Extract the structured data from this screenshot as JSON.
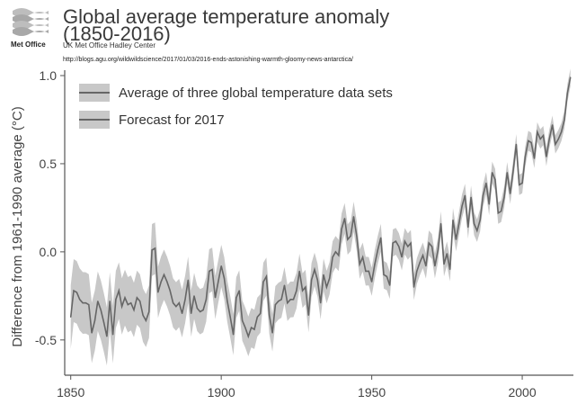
{
  "logo": {
    "text": "Met Office"
  },
  "header": {
    "title_line1": "Global average temperature anomaly",
    "title_line2": "(1850-2016)",
    "credit": "UK Met Office Hadley Center",
    "source_url": "http://blogs.agu.org/wildwildscience/2017/01/03/2016-ends-astonishing-warmth-gloomy-news-antarctica/"
  },
  "colors": {
    "band": "#c8c8c8",
    "line": "#666666",
    "axis": "#555555"
  },
  "chart_data": {
    "type": "line",
    "title": "Global average temperature anomaly (1850-2016)",
    "xlabel": "",
    "ylabel": "Difference from 1961-1990 average (°C)",
    "xlim": [
      1848,
      2017
    ],
    "ylim": [
      -0.7,
      1.0
    ],
    "x_ticks": [
      1850,
      1900,
      1950,
      2000
    ],
    "x_tick_labels": [
      "1850",
      "1900",
      "1950",
      "2000"
    ],
    "y_ticks": [
      1.0,
      0.5,
      0.0,
      -0.5
    ],
    "y_tick_labels": [
      "1.0",
      "0.5",
      "0.0",
      "-0.5"
    ],
    "grid": false,
    "legend_position": "top-left",
    "legend": [
      "Average of three global temperature data sets",
      "Forecast for 2017"
    ],
    "band_halfwidth_by_year": [
      [
        1850,
        0.18
      ],
      [
        1900,
        0.12
      ],
      [
        1950,
        0.08
      ],
      [
        2016,
        0.05
      ]
    ],
    "series": [
      {
        "name": "Average of three global temperature data sets",
        "x": [
          1850,
          1851,
          1852,
          1853,
          1854,
          1855,
          1856,
          1857,
          1858,
          1859,
          1860,
          1861,
          1862,
          1863,
          1864,
          1865,
          1866,
          1867,
          1868,
          1869,
          1870,
          1871,
          1872,
          1873,
          1874,
          1875,
          1876,
          1877,
          1878,
          1879,
          1880,
          1881,
          1882,
          1883,
          1884,
          1885,
          1886,
          1887,
          1888,
          1889,
          1890,
          1891,
          1892,
          1893,
          1894,
          1895,
          1896,
          1897,
          1898,
          1899,
          1900,
          1901,
          1902,
          1903,
          1904,
          1905,
          1906,
          1907,
          1908,
          1909,
          1910,
          1911,
          1912,
          1913,
          1914,
          1915,
          1916,
          1917,
          1918,
          1919,
          1920,
          1921,
          1922,
          1923,
          1924,
          1925,
          1926,
          1927,
          1928,
          1929,
          1930,
          1931,
          1932,
          1933,
          1934,
          1935,
          1936,
          1937,
          1938,
          1939,
          1940,
          1941,
          1942,
          1943,
          1944,
          1945,
          1946,
          1947,
          1948,
          1949,
          1950,
          1951,
          1952,
          1953,
          1954,
          1955,
          1956,
          1957,
          1958,
          1959,
          1960,
          1961,
          1962,
          1963,
          1964,
          1965,
          1966,
          1967,
          1968,
          1969,
          1970,
          1971,
          1972,
          1973,
          1974,
          1975,
          1976,
          1977,
          1978,
          1979,
          1980,
          1981,
          1982,
          1983,
          1984,
          1985,
          1986,
          1987,
          1988,
          1989,
          1990,
          1991,
          1992,
          1993,
          1994,
          1995,
          1996,
          1997,
          1998,
          1999,
          2000,
          2001,
          2002,
          2003,
          2004,
          2005,
          2006,
          2007,
          2008,
          2009,
          2010,
          2011,
          2012,
          2013,
          2014,
          2015,
          2016
        ],
        "values": [
          -0.37,
          -0.22,
          -0.23,
          -0.27,
          -0.29,
          -0.29,
          -0.3,
          -0.46,
          -0.39,
          -0.28,
          -0.33,
          -0.4,
          -0.48,
          -0.28,
          -0.47,
          -0.27,
          -0.22,
          -0.31,
          -0.26,
          -0.3,
          -0.29,
          -0.33,
          -0.26,
          -0.28,
          -0.36,
          -0.39,
          -0.34,
          0.01,
          0.02,
          -0.23,
          -0.17,
          -0.13,
          -0.17,
          -0.22,
          -0.29,
          -0.31,
          -0.29,
          -0.35,
          -0.27,
          -0.16,
          -0.35,
          -0.25,
          -0.32,
          -0.34,
          -0.33,
          -0.27,
          -0.11,
          -0.1,
          -0.26,
          -0.17,
          -0.08,
          -0.15,
          -0.28,
          -0.37,
          -0.47,
          -0.26,
          -0.22,
          -0.39,
          -0.43,
          -0.48,
          -0.43,
          -0.44,
          -0.37,
          -0.35,
          -0.17,
          -0.14,
          -0.36,
          -0.46,
          -0.3,
          -0.28,
          -0.27,
          -0.19,
          -0.29,
          -0.27,
          -0.27,
          -0.22,
          -0.11,
          -0.22,
          -0.2,
          -0.36,
          -0.16,
          -0.1,
          -0.16,
          -0.29,
          -0.13,
          -0.2,
          -0.15,
          -0.03,
          -0.0,
          -0.02,
          0.13,
          0.19,
          0.07,
          0.09,
          0.2,
          0.09,
          -0.07,
          -0.03,
          -0.11,
          -0.11,
          -0.17,
          -0.07,
          0.01,
          0.08,
          -0.13,
          -0.14,
          -0.19,
          0.05,
          0.06,
          0.03,
          -0.03,
          0.06,
          0.03,
          0.05,
          -0.2,
          -0.11,
          -0.06,
          -0.02,
          -0.08,
          0.05,
          0.03,
          -0.08,
          0.01,
          0.16,
          -0.07,
          -0.01,
          -0.1,
          0.18,
          0.07,
          0.16,
          0.26,
          0.32,
          0.14,
          0.31,
          0.16,
          0.12,
          0.18,
          0.32,
          0.39,
          0.27,
          0.45,
          0.41,
          0.22,
          0.23,
          0.31,
          0.45,
          0.33,
          0.46,
          0.61,
          0.38,
          0.39,
          0.54,
          0.63,
          0.62,
          0.53,
          0.68,
          0.64,
          0.66,
          0.54,
          0.64,
          0.72,
          0.61,
          0.64,
          0.68,
          0.75,
          0.9,
          0.99
        ]
      }
    ]
  }
}
